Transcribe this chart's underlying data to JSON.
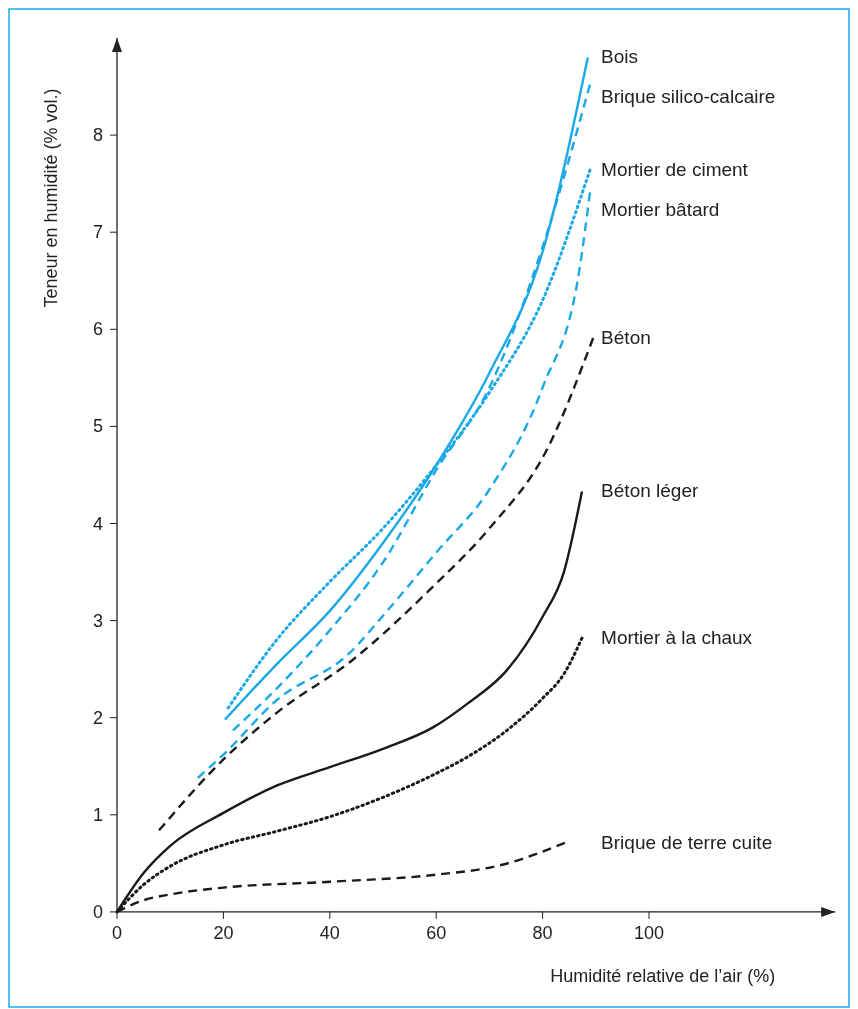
{
  "chart_data": {
    "type": "line",
    "xlabel": "Humidité relative de l’air (%)",
    "ylabel": "Teneur en humidité (% vol.)",
    "xlim": [
      0,
      135
    ],
    "ylim": [
      0,
      9
    ],
    "xticks": [
      0,
      20,
      40,
      60,
      80,
      100
    ],
    "yticks": [
      0,
      1,
      2,
      3,
      4,
      5,
      6,
      7,
      8
    ],
    "grid": false,
    "marker": "none",
    "series": [
      {
        "name": "Bois",
        "color": "#1aa9e6",
        "line_style": "solid",
        "x": [
          20.3,
          30,
          40,
          50,
          60,
          70,
          80,
          88.5
        ],
        "values": [
          1.98,
          2.55,
          3.1,
          3.8,
          4.6,
          5.55,
          6.8,
          8.8
        ]
      },
      {
        "name": "Brique silico-calcaire",
        "color": "#1aa9e6",
        "line_style": "dashed",
        "x": [
          21.8,
          30,
          40,
          50,
          60,
          70,
          80,
          88.9
        ],
        "values": [
          1.87,
          2.3,
          2.9,
          3.6,
          4.55,
          5.4,
          6.85,
          8.52
        ]
      },
      {
        "name": "Mortier de ciment",
        "color": "#1aa9e6",
        "line_style": "dotted",
        "x": [
          20.9,
          30,
          40,
          50,
          60,
          70,
          80,
          88.9
        ],
        "values": [
          2.1,
          2.8,
          3.4,
          3.95,
          4.6,
          5.35,
          6.3,
          7.64
        ]
      },
      {
        "name": "Mortier bâtard",
        "color": "#1aa9e6",
        "line_style": "dashed",
        "x": [
          15.2,
          20,
          30,
          43.8,
          50,
          60,
          70,
          80,
          87,
          88.9
        ],
        "values": [
          1.38,
          1.62,
          2.18,
          2.67,
          3.05,
          3.7,
          4.35,
          5.4,
          6.64,
          7.41
        ]
      },
      {
        "name": "Béton",
        "color": "#1a1a1a",
        "line_style": "dashed",
        "x": [
          7.9,
          20,
          30,
          44.4,
          59.4,
          70,
          80.8,
          89.5
        ],
        "values": [
          0.84,
          1.57,
          2.05,
          2.6,
          3.35,
          3.95,
          4.76,
          5.91
        ]
      },
      {
        "name": "Béton léger",
        "color": "#1a1a1a",
        "line_style": "solid",
        "x": [
          0,
          5,
          10,
          20,
          30,
          40,
          50,
          59.4,
          66,
          73.3,
          80,
          84,
          87.4
        ],
        "values": [
          0,
          0.4,
          0.68,
          1.02,
          1.3,
          1.49,
          1.68,
          1.9,
          2.15,
          2.49,
          3.04,
          3.5,
          4.33
        ]
      },
      {
        "name": "Mortier à la chaux",
        "color": "#1a1a1a",
        "line_style": "dotted",
        "x": [
          0,
          5,
          10,
          20,
          30,
          40,
          50,
          59.4,
          66,
          73.3,
          80,
          84,
          87.4
        ],
        "values": [
          0,
          0.28,
          0.47,
          0.69,
          0.83,
          0.98,
          1.18,
          1.41,
          1.6,
          1.87,
          2.2,
          2.45,
          2.82
        ]
      },
      {
        "name": "Brique de terre cuite",
        "color": "#1a1a1a",
        "line_style": "dashed",
        "x": [
          0,
          5,
          10,
          20,
          40,
          59.4,
          72,
          84.2
        ],
        "values": [
          0,
          0.12,
          0.18,
          0.25,
          0.31,
          0.38,
          0.48,
          0.71
        ]
      }
    ]
  }
}
